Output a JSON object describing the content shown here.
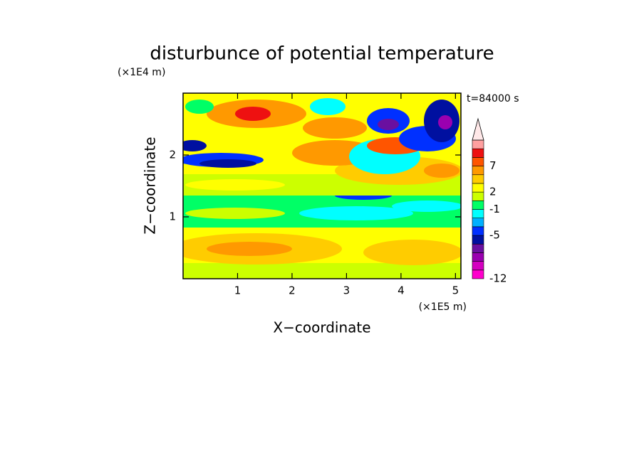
{
  "chart_data": {
    "type": "contour",
    "title": "disturbunce of potential temperature",
    "x_label": "X−coordinate",
    "y_label": "Z−coordinate",
    "x_unit": "(×1E5 m)",
    "y_unit": "(×1E4 m)",
    "time_label": "t=84000 s",
    "xlim": [
      0,
      5.1
    ],
    "ylim": [
      0,
      3
    ],
    "xticks": [
      1,
      2,
      3,
      4,
      5
    ],
    "yticks": [
      1,
      2
    ],
    "colorbar": {
      "levels": [
        -12,
        null,
        null,
        null,
        null,
        -5,
        null,
        null,
        -1,
        null,
        2,
        null,
        null,
        7,
        null,
        null,
        null
      ],
      "colors": [
        "#ff00cc",
        "#d400c0",
        "#9a00b0",
        "#6a10a0",
        "#0010a0",
        "#0030ff",
        "#00b0ff",
        "#00ffff",
        "#00ff66",
        "#ccff00",
        "#ffff00",
        "#ffcc00",
        "#ff9900",
        "#ff5500",
        "#ee1111",
        "#ffa0a0"
      ],
      "extend_color": "#ffe8e8"
    }
  }
}
